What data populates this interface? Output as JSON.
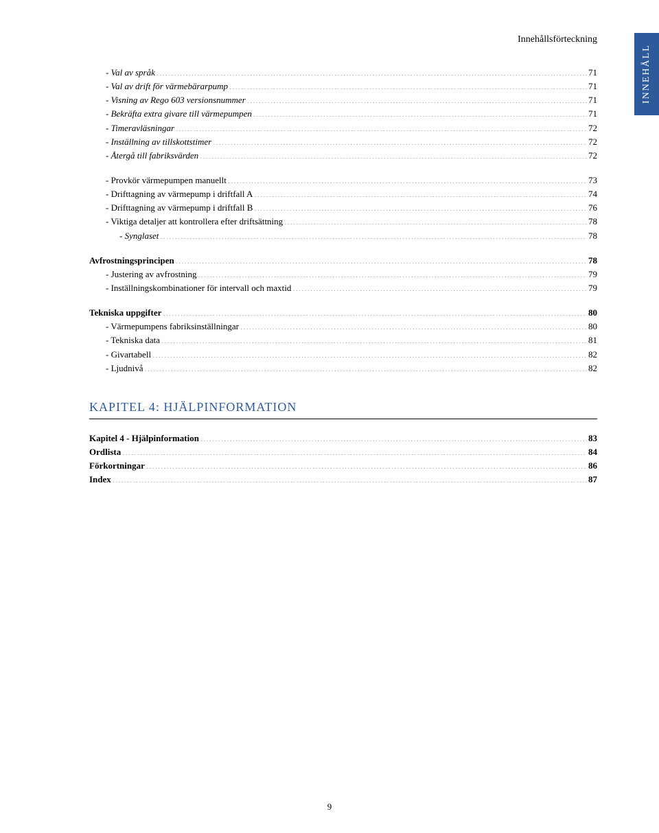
{
  "header": {
    "title": "Innehållsförteckning"
  },
  "sideTab": {
    "label": "INNEHÅLL"
  },
  "toc": {
    "group1": [
      {
        "label": "- Val av språk",
        "page": "71",
        "indent": 1,
        "style": "italic"
      },
      {
        "label": "- Val av drift för värmebärarpump",
        "page": "71",
        "indent": 1,
        "style": "italic"
      },
      {
        "label": "- Visning av Rego 603 versionsnummer",
        "page": "71",
        "indent": 1,
        "style": "italic"
      },
      {
        "label": "- Bekräfta extra givare till värmepumpen",
        "page": "71",
        "indent": 1,
        "style": "italic"
      },
      {
        "label": "- Timeravläsningar",
        "page": "72",
        "indent": 1,
        "style": "italic"
      },
      {
        "label": "- Inställning av tillskottstimer",
        "page": "72",
        "indent": 1,
        "style": "italic"
      },
      {
        "label": "- Återgå till fabriksvärden",
        "page": "72",
        "indent": 1,
        "style": "italic"
      }
    ],
    "group2": [
      {
        "label": "- Provkör värmepumpen manuellt",
        "page": "73",
        "indent": 1,
        "style": "normal"
      },
      {
        "label": "- Drifttagning av värmepump i driftfall A",
        "page": "74",
        "indent": 1,
        "style": "normal"
      },
      {
        "label": "- Drifttagning av värmepump i driftfall B",
        "page": "76",
        "indent": 1,
        "style": "normal"
      },
      {
        "label": "- Viktiga detaljer att kontrollera efter driftsättning",
        "page": "78",
        "indent": 1,
        "style": "normal"
      },
      {
        "label": "- Synglaset",
        "page": "78",
        "indent": 2,
        "style": "italic"
      }
    ],
    "group3": [
      {
        "label": "Avfrostningsprincipen",
        "page": "78",
        "indent": 0,
        "style": "bold"
      },
      {
        "label": "- Justering av avfrostning",
        "page": "79",
        "indent": 1,
        "style": "normal"
      },
      {
        "label": "- Inställningskombinationer för intervall och maxtid",
        "page": "79",
        "indent": 1,
        "style": "normal"
      }
    ],
    "group4": [
      {
        "label": "Tekniska uppgifter",
        "page": "80",
        "indent": 0,
        "style": "bold"
      },
      {
        "label": "- Värmepumpens fabriksinställningar",
        "page": "80",
        "indent": 1,
        "style": "normal"
      },
      {
        "label": "- Tekniska data",
        "page": "81",
        "indent": 1,
        "style": "normal"
      },
      {
        "label": "- Givartabell",
        "page": "82",
        "indent": 1,
        "style": "normal"
      },
      {
        "label": "- Ljudnivå",
        "page": "82",
        "indent": 1,
        "style": "normal"
      }
    ],
    "chapter4": {
      "heading": "KAPITEL 4: HJÄLPINFORMATION",
      "items": [
        {
          "label": "Kapitel 4 - Hjälpinformation",
          "page": "83",
          "indent": 0,
          "style": "bold"
        },
        {
          "label": "Ordlista",
          "page": "84",
          "indent": 0,
          "style": "bold"
        },
        {
          "label": "Förkortningar",
          "page": "86",
          "indent": 0,
          "style": "bold"
        },
        {
          "label": "Index",
          "page": "87",
          "indent": 0,
          "style": "bold"
        }
      ]
    }
  },
  "pageNumber": "9",
  "colors": {
    "accent": "#2e5a9c",
    "text": "#000000",
    "background": "#ffffff"
  }
}
